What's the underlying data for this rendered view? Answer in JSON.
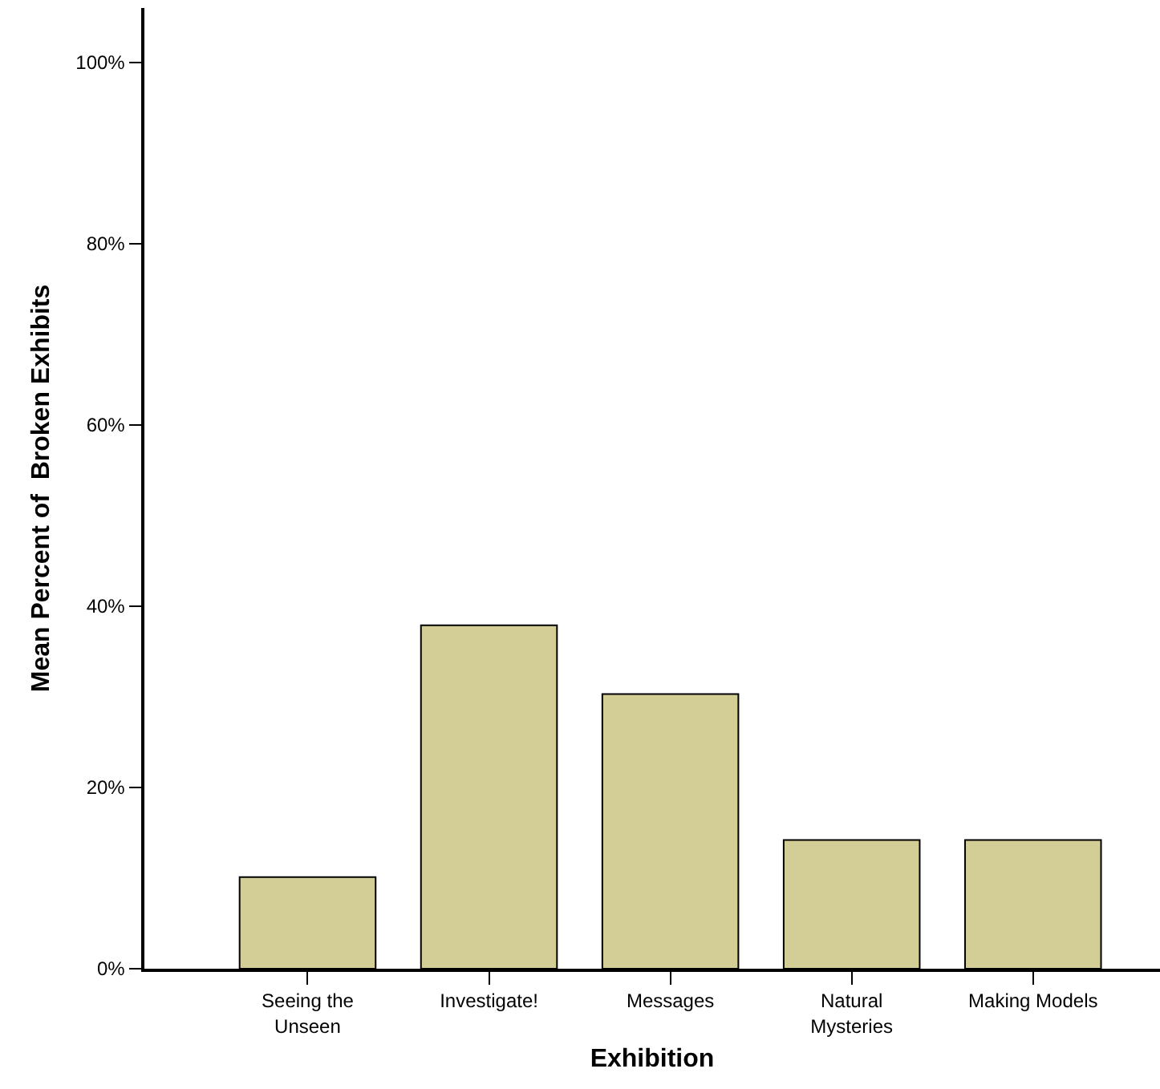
{
  "chart_data": {
    "type": "bar",
    "xlabel": "Exhibition",
    "ylabel": "Mean Percent of  Broken Exhibits",
    "categories": [
      "Seeing the\nUnseen",
      "Investigate!",
      "Messages",
      "Natural\nMysteries",
      "Making Models"
    ],
    "values": [
      10.1,
      37.9,
      30.3,
      14.2,
      14.2
    ],
    "color": "#d3cd96",
    "ylim": [
      0,
      106
    ],
    "yticks": [
      {
        "value": 0,
        "label": "0%"
      },
      {
        "value": 20,
        "label": "20%"
      },
      {
        "value": 40,
        "label": "40%"
      },
      {
        "value": 60,
        "label": "60%"
      },
      {
        "value": 80,
        "label": "80%"
      },
      {
        "value": 100,
        "label": "100%"
      }
    ]
  }
}
